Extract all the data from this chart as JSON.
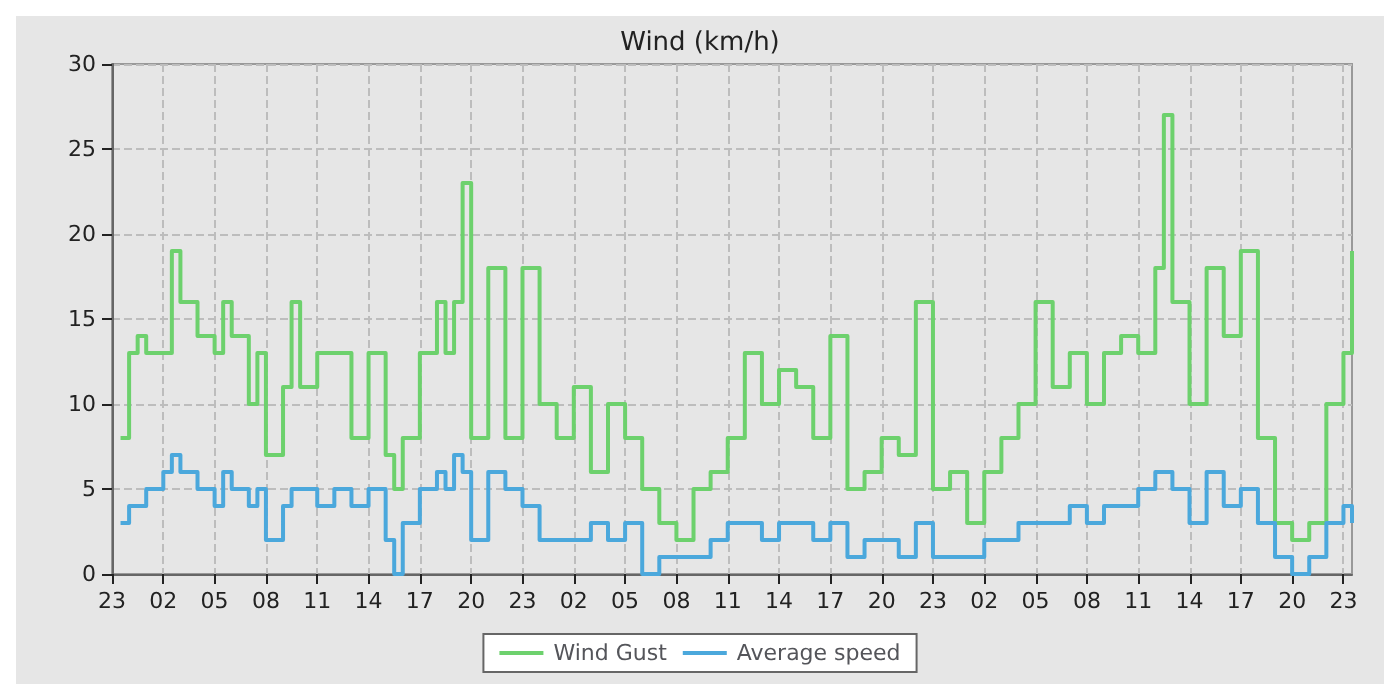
{
  "chart_data": {
    "type": "step",
    "title": "Wind (km/h)",
    "categories": [
      "23",
      null,
      null,
      null,
      null,
      null,
      "02",
      null,
      null,
      null,
      null,
      null,
      "05",
      null,
      null,
      null,
      null,
      null,
      "08",
      null,
      null,
      null,
      null,
      null,
      "11",
      null,
      null,
      null,
      null,
      null,
      "14",
      null,
      null,
      null,
      null,
      null,
      "17",
      null,
      null,
      null,
      null,
      null,
      "20",
      null,
      null,
      null,
      null,
      null,
      "23",
      null,
      null,
      null,
      null,
      null,
      "02",
      null,
      null,
      null,
      null,
      null,
      "05",
      null,
      null,
      null,
      null,
      null,
      "08",
      null,
      null,
      null,
      null,
      null,
      "11",
      null,
      null,
      null,
      null,
      null,
      "14",
      null,
      null,
      null,
      null,
      null,
      "17",
      null,
      null,
      null,
      null,
      null,
      "20",
      null,
      null,
      null,
      null,
      null,
      "23",
      null,
      null,
      null,
      null,
      null,
      "02",
      null,
      null,
      null,
      null,
      null,
      "05",
      null,
      null,
      null,
      null,
      null,
      "08",
      null,
      null,
      null,
      null,
      null,
      "11",
      null,
      null,
      null,
      null,
      null,
      "14",
      null,
      null,
      null,
      null,
      null,
      "17",
      null,
      null,
      null,
      null,
      null,
      "20",
      null,
      null,
      null,
      null,
      null,
      "23",
      null
    ],
    "series": [
      {
        "name": "Wind Gust",
        "color": "#6dd16d",
        "values": [
          null,
          8,
          13,
          14,
          13,
          13,
          13,
          19,
          16,
          16,
          14,
          14,
          13,
          16,
          14,
          14,
          10,
          13,
          7,
          7,
          11,
          16,
          11,
          11,
          13,
          13,
          13,
          13,
          8,
          8,
          13,
          13,
          7,
          5,
          8,
          8,
          13,
          13,
          16,
          13,
          16,
          23,
          8,
          8,
          18,
          18,
          8,
          8,
          18,
          18,
          10,
          10,
          8,
          8,
          11,
          11,
          6,
          6,
          10,
          10,
          8,
          8,
          5,
          5,
          3,
          3,
          2,
          2,
          5,
          5,
          6,
          6,
          8,
          8,
          13,
          13,
          10,
          10,
          12,
          12,
          11,
          11,
          8,
          8,
          14,
          14,
          5,
          5,
          6,
          6,
          8,
          8,
          7,
          7,
          16,
          16,
          5,
          5,
          6,
          6,
          3,
          3,
          6,
          6,
          8,
          8,
          10,
          10,
          16,
          16,
          11,
          11,
          13,
          13,
          10,
          10,
          13,
          13,
          14,
          14,
          13,
          13,
          18,
          27,
          16,
          16,
          10,
          10,
          18,
          18,
          14,
          14,
          19,
          19,
          8,
          8,
          3,
          3,
          2,
          2,
          3,
          3,
          10,
          10,
          13,
          19
        ]
      },
      {
        "name": "Average speed",
        "color": "#4ba8dc",
        "values": [
          null,
          3,
          4,
          4,
          5,
          5,
          6,
          7,
          6,
          6,
          5,
          5,
          4,
          6,
          5,
          5,
          4,
          5,
          2,
          2,
          4,
          5,
          5,
          5,
          4,
          4,
          5,
          5,
          4,
          4,
          5,
          5,
          2,
          0,
          3,
          3,
          5,
          5,
          6,
          5,
          7,
          6,
          2,
          2,
          6,
          6,
          5,
          5,
          4,
          4,
          2,
          2,
          2,
          2,
          2,
          2,
          3,
          3,
          2,
          2,
          3,
          3,
          0,
          0,
          1,
          1,
          1,
          1,
          1,
          1,
          2,
          2,
          3,
          3,
          3,
          3,
          2,
          2,
          3,
          3,
          3,
          3,
          2,
          2,
          3,
          3,
          1,
          1,
          2,
          2,
          2,
          2,
          1,
          1,
          3,
          3,
          1,
          1,
          1,
          1,
          1,
          1,
          2,
          2,
          2,
          2,
          3,
          3,
          3,
          3,
          3,
          3,
          4,
          4,
          3,
          3,
          4,
          4,
          4,
          4,
          5,
          5,
          6,
          6,
          5,
          5,
          3,
          3,
          6,
          6,
          4,
          4,
          5,
          5,
          3,
          3,
          1,
          1,
          0,
          0,
          1,
          1,
          3,
          3,
          4,
          3
        ]
      }
    ],
    "ylim": [
      0,
      30
    ],
    "yticks": [
      0,
      5,
      10,
      15,
      20,
      25,
      30
    ],
    "grid": true,
    "legend": "bottom",
    "marker": "none"
  }
}
